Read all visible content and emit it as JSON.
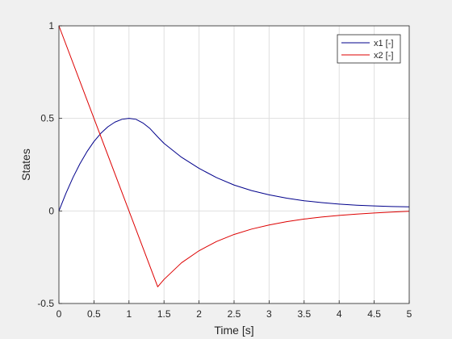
{
  "chart_data": {
    "type": "line",
    "title": "",
    "xlabel": "Time [s]",
    "ylabel": "States",
    "xlim": [
      0,
      5
    ],
    "ylim": [
      -0.5,
      1
    ],
    "grid": true,
    "legend_position": "top-right",
    "x_ticks": [
      "0",
      "0.5",
      "1",
      "1.5",
      "2",
      "2.5",
      "3",
      "3.5",
      "4",
      "4.5",
      "5"
    ],
    "y_ticks": [
      "-0.5",
      "0",
      "0.5",
      "1"
    ],
    "series": [
      {
        "name": "x1 [-]",
        "color": "#00008b",
        "x": [
          0,
          0.1,
          0.2,
          0.3,
          0.4,
          0.5,
          0.6,
          0.7,
          0.8,
          0.9,
          1.0,
          1.1,
          1.2,
          1.3,
          1.41,
          1.5,
          1.75,
          2.0,
          2.25,
          2.5,
          2.75,
          3.0,
          3.25,
          3.5,
          3.75,
          4.0,
          4.25,
          4.5,
          4.75,
          5.0
        ],
        "y": [
          0,
          0.095,
          0.18,
          0.255,
          0.32,
          0.375,
          0.42,
          0.455,
          0.48,
          0.495,
          0.5,
          0.495,
          0.475,
          0.445,
          0.4,
          0.365,
          0.29,
          0.23,
          0.18,
          0.14,
          0.11,
          0.087,
          0.069,
          0.055,
          0.045,
          0.037,
          0.031,
          0.027,
          0.024,
          0.022
        ]
      },
      {
        "name": "x2 [-]",
        "color": "#dd0000",
        "x": [
          0,
          1.41,
          1.5,
          1.75,
          2.0,
          2.25,
          2.5,
          2.75,
          3.0,
          3.25,
          3.5,
          3.75,
          4.0,
          4.25,
          4.5,
          4.75,
          5.0
        ],
        "y": [
          1,
          -0.41,
          -0.37,
          -0.28,
          -0.215,
          -0.165,
          -0.127,
          -0.098,
          -0.076,
          -0.058,
          -0.044,
          -0.033,
          -0.024,
          -0.017,
          -0.011,
          -0.006,
          -0.002
        ]
      }
    ]
  }
}
